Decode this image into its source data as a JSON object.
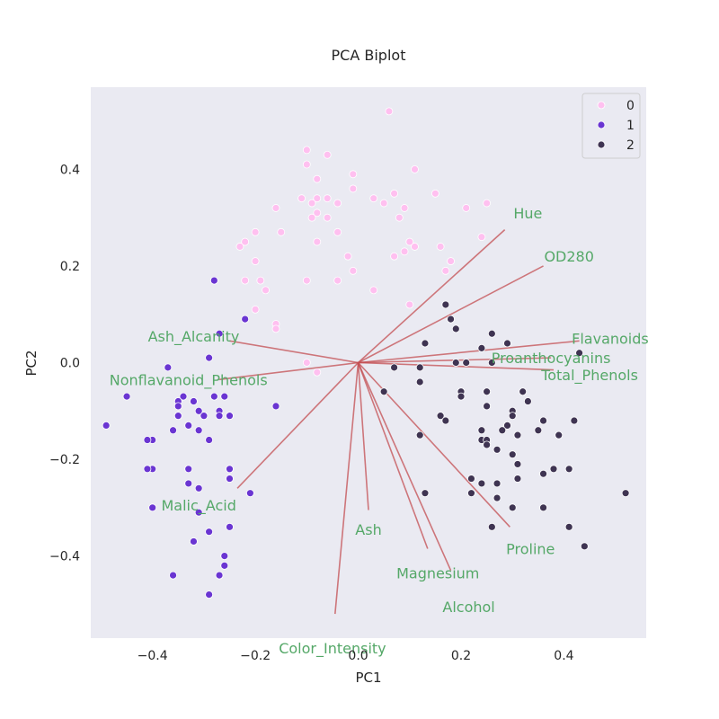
{
  "chart_data": {
    "type": "scatter",
    "title": "PCA Biplot",
    "xlabel": "PC1",
    "ylabel": "PC2",
    "xlim": [
      -0.52,
      0.56
    ],
    "ylim": [
      -0.57,
      0.57
    ],
    "x_ticks": [
      -0.4,
      -0.2,
      0.0,
      0.2,
      0.4
    ],
    "y_ticks": [
      -0.4,
      -0.2,
      0.0,
      0.2,
      0.4
    ],
    "x_tick_labels": [
      "−0.4",
      "−0.2",
      "0.0",
      "0.2",
      "0.4"
    ],
    "y_tick_labels": [
      "−0.4",
      "−0.2",
      "0.0",
      "0.2",
      "0.4"
    ],
    "grid": false,
    "background": "#eaeaf2",
    "legend": {
      "placement": "top-right",
      "entries": [
        {
          "label": "0",
          "color": "#ffc0f0"
        },
        {
          "label": "1",
          "color": "#6a35d2"
        },
        {
          "label": "2",
          "color": "#3f3452"
        }
      ]
    },
    "series": [
      {
        "name": "0",
        "color": "#ffc0f0",
        "points": [
          [
            0.06,
            0.52
          ],
          [
            -0.1,
            0.44
          ],
          [
            -0.06,
            0.43
          ],
          [
            -0.1,
            0.41
          ],
          [
            0.11,
            0.4
          ],
          [
            -0.01,
            0.39
          ],
          [
            -0.08,
            0.38
          ],
          [
            0.07,
            0.35
          ],
          [
            -0.01,
            0.36
          ],
          [
            0.15,
            0.35
          ],
          [
            -0.08,
            0.34
          ],
          [
            -0.06,
            0.34
          ],
          [
            -0.09,
            0.33
          ],
          [
            -0.11,
            0.34
          ],
          [
            -0.04,
            0.33
          ],
          [
            0.03,
            0.34
          ],
          [
            0.05,
            0.33
          ],
          [
            0.09,
            0.32
          ],
          [
            0.25,
            0.33
          ],
          [
            0.21,
            0.32
          ],
          [
            -0.16,
            0.32
          ],
          [
            -0.08,
            0.31
          ],
          [
            -0.09,
            0.3
          ],
          [
            -0.06,
            0.3
          ],
          [
            0.08,
            0.3
          ],
          [
            -0.2,
            0.27
          ],
          [
            -0.04,
            0.27
          ],
          [
            -0.15,
            0.27
          ],
          [
            -0.22,
            0.25
          ],
          [
            -0.23,
            0.24
          ],
          [
            0.1,
            0.25
          ],
          [
            0.11,
            0.24
          ],
          [
            0.24,
            0.26
          ],
          [
            0.16,
            0.24
          ],
          [
            -0.08,
            0.25
          ],
          [
            0.09,
            0.23
          ],
          [
            -0.02,
            0.22
          ],
          [
            0.07,
            0.22
          ],
          [
            -0.2,
            0.21
          ],
          [
            0.18,
            0.21
          ],
          [
            -0.01,
            0.19
          ],
          [
            0.17,
            0.19
          ],
          [
            -0.22,
            0.17
          ],
          [
            -0.1,
            0.17
          ],
          [
            -0.04,
            0.17
          ],
          [
            -0.19,
            0.17
          ],
          [
            -0.18,
            0.15
          ],
          [
            0.03,
            0.15
          ],
          [
            0.1,
            0.12
          ],
          [
            -0.2,
            0.11
          ],
          [
            -0.16,
            0.08
          ],
          [
            -0.16,
            0.07
          ],
          [
            -0.1,
            0.0
          ],
          [
            -0.08,
            -0.02
          ]
        ]
      },
      {
        "name": "1",
        "color": "#6a35d2",
        "points": [
          [
            -0.28,
            0.17
          ],
          [
            -0.22,
            0.09
          ],
          [
            -0.27,
            0.06
          ],
          [
            -0.29,
            0.01
          ],
          [
            -0.37,
            -0.01
          ],
          [
            -0.45,
            -0.07
          ],
          [
            -0.34,
            -0.07
          ],
          [
            -0.35,
            -0.08
          ],
          [
            -0.32,
            -0.08
          ],
          [
            -0.28,
            -0.07
          ],
          [
            -0.26,
            -0.07
          ],
          [
            -0.35,
            -0.09
          ],
          [
            -0.16,
            -0.09
          ],
          [
            -0.31,
            -0.1
          ],
          [
            -0.27,
            -0.1
          ],
          [
            -0.27,
            -0.11
          ],
          [
            -0.35,
            -0.11
          ],
          [
            -0.3,
            -0.11
          ],
          [
            -0.25,
            -0.11
          ],
          [
            -0.49,
            -0.13
          ],
          [
            -0.33,
            -0.13
          ],
          [
            -0.36,
            -0.14
          ],
          [
            -0.31,
            -0.14
          ],
          [
            -0.4,
            -0.16
          ],
          [
            -0.41,
            -0.16
          ],
          [
            -0.29,
            -0.16
          ],
          [
            -0.4,
            -0.22
          ],
          [
            -0.41,
            -0.22
          ],
          [
            -0.33,
            -0.22
          ],
          [
            -0.25,
            -0.22
          ],
          [
            -0.25,
            -0.24
          ],
          [
            -0.33,
            -0.25
          ],
          [
            -0.31,
            -0.26
          ],
          [
            -0.21,
            -0.27
          ],
          [
            -0.4,
            -0.3
          ],
          [
            -0.31,
            -0.31
          ],
          [
            -0.25,
            -0.34
          ],
          [
            -0.29,
            -0.35
          ],
          [
            -0.32,
            -0.37
          ],
          [
            -0.26,
            -0.4
          ],
          [
            -0.26,
            -0.42
          ],
          [
            -0.36,
            -0.44
          ],
          [
            -0.27,
            -0.44
          ],
          [
            -0.29,
            -0.48
          ]
        ]
      },
      {
        "name": "2",
        "color": "#3f3452",
        "points": [
          [
            0.17,
            0.12
          ],
          [
            0.18,
            0.09
          ],
          [
            0.19,
            0.07
          ],
          [
            0.26,
            0.06
          ],
          [
            0.13,
            0.04
          ],
          [
            0.29,
            0.04
          ],
          [
            0.24,
            0.03
          ],
          [
            0.43,
            0.02
          ],
          [
            0.19,
            0.0
          ],
          [
            0.21,
            0.0
          ],
          [
            0.26,
            0.0
          ],
          [
            0.07,
            -0.01
          ],
          [
            0.12,
            -0.01
          ],
          [
            0.12,
            -0.04
          ],
          [
            0.05,
            -0.06
          ],
          [
            0.2,
            -0.06
          ],
          [
            0.25,
            -0.06
          ],
          [
            0.32,
            -0.06
          ],
          [
            0.2,
            -0.07
          ],
          [
            0.33,
            -0.08
          ],
          [
            0.25,
            -0.09
          ],
          [
            0.3,
            -0.1
          ],
          [
            0.16,
            -0.11
          ],
          [
            0.17,
            -0.12
          ],
          [
            0.3,
            -0.11
          ],
          [
            0.42,
            -0.12
          ],
          [
            0.36,
            -0.12
          ],
          [
            0.29,
            -0.13
          ],
          [
            0.28,
            -0.14
          ],
          [
            0.24,
            -0.14
          ],
          [
            0.35,
            -0.14
          ],
          [
            0.12,
            -0.15
          ],
          [
            0.31,
            -0.15
          ],
          [
            0.24,
            -0.16
          ],
          [
            0.25,
            -0.16
          ],
          [
            0.39,
            -0.15
          ],
          [
            0.25,
            -0.17
          ],
          [
            0.27,
            -0.18
          ],
          [
            0.3,
            -0.19
          ],
          [
            0.31,
            -0.21
          ],
          [
            0.38,
            -0.22
          ],
          [
            0.41,
            -0.22
          ],
          [
            0.36,
            -0.23
          ],
          [
            0.22,
            -0.24
          ],
          [
            0.24,
            -0.25
          ],
          [
            0.31,
            -0.24
          ],
          [
            0.27,
            -0.25
          ],
          [
            0.22,
            -0.27
          ],
          [
            0.27,
            -0.28
          ],
          [
            0.13,
            -0.27
          ],
          [
            0.52,
            -0.27
          ],
          [
            0.3,
            -0.3
          ],
          [
            0.36,
            -0.3
          ],
          [
            0.26,
            -0.34
          ],
          [
            0.41,
            -0.34
          ],
          [
            0.44,
            -0.38
          ]
        ]
      }
    ],
    "loadings": [
      {
        "name": "Hue",
        "x": 0.285,
        "y": 0.275,
        "label_x": 0.33,
        "label_y": 0.31
      },
      {
        "name": "OD280",
        "x": 0.36,
        "y": 0.2,
        "label_x": 0.41,
        "label_y": 0.22
      },
      {
        "name": "Flavanoids",
        "x": 0.43,
        "y": 0.045,
        "label_x": 0.49,
        "label_y": 0.05
      },
      {
        "name": "Proanthocyanins",
        "x": 0.375,
        "y": 0.01,
        "label_x": 0.375,
        "label_y": 0.01
      },
      {
        "name": "Total_Phenols",
        "x": 0.38,
        "y": -0.015,
        "label_x": 0.45,
        "label_y": -0.025
      },
      {
        "name": "Ash_Alcanity",
        "x": -0.25,
        "y": 0.045,
        "label_x": -0.32,
        "label_y": 0.055
      },
      {
        "name": "Nonflavanoid_Phenols",
        "x": -0.27,
        "y": -0.035,
        "label_x": -0.33,
        "label_y": -0.035
      },
      {
        "name": "Malic_Acid",
        "x": -0.235,
        "y": -0.26,
        "label_x": -0.31,
        "label_y": -0.295
      },
      {
        "name": "Ash",
        "x": 0.02,
        "y": -0.305,
        "label_x": 0.02,
        "label_y": -0.345
      },
      {
        "name": "Magnesium",
        "x": 0.135,
        "y": -0.385,
        "label_x": 0.155,
        "label_y": -0.435
      },
      {
        "name": "Proline",
        "x": 0.295,
        "y": -0.34,
        "label_x": 0.335,
        "label_y": -0.385
      },
      {
        "name": "Alcohol",
        "x": 0.18,
        "y": -0.43,
        "label_x": 0.215,
        "label_y": -0.505
      },
      {
        "name": "Color_Intensity",
        "x": -0.045,
        "y": -0.52,
        "label_x": -0.05,
        "label_y": -0.59
      }
    ],
    "loading_line_color": "#c44e52",
    "loading_label_color": "#55a868"
  }
}
